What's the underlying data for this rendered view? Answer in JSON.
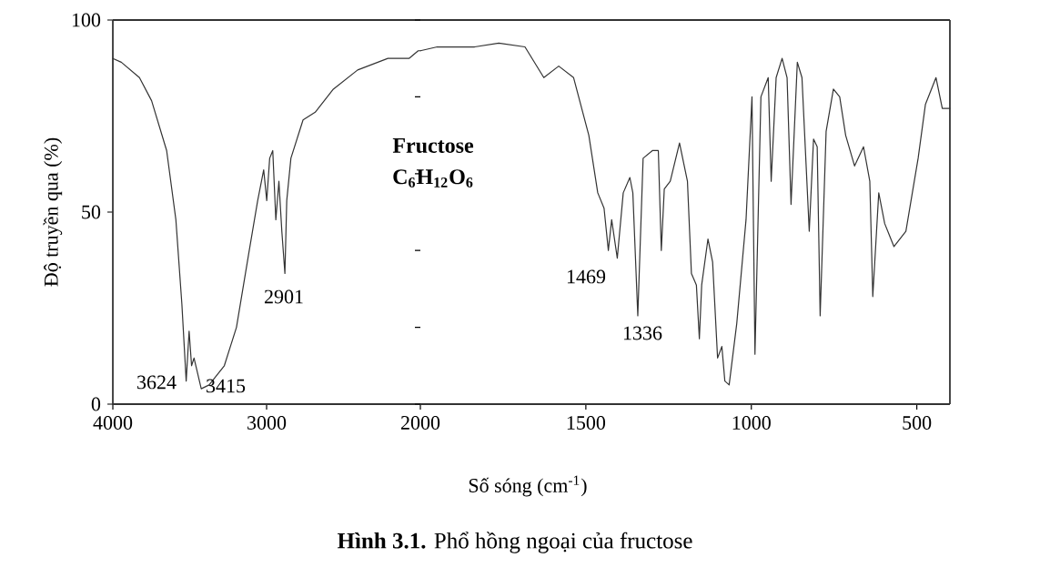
{
  "chart_data": [
    {
      "type": "line",
      "ylabel": "Độ truyền qua (%)",
      "xlim": [
        4000,
        2000
      ],
      "ylim": [
        0,
        100
      ],
      "xticks": [
        4000,
        3000,
        2000
      ],
      "yticks": [
        0,
        50,
        100
      ],
      "grid": false,
      "marker": "none",
      "line_style": "solid",
      "annotations": [
        "3624",
        "3415",
        "2901"
      ],
      "series": [
        {
          "color": "#333333",
          "x": [
            4000,
            3945,
            3827,
            3748,
            3650,
            3590,
            3551,
            3523,
            3504,
            3488,
            3472,
            3425,
            3374,
            3275,
            3196,
            3117,
            3058,
            3019,
            2999,
            2980,
            2960,
            2940,
            2920,
            2901,
            2881,
            2869,
            2842,
            2763,
            2684,
            2566,
            2408,
            2211,
            2074,
            2014,
            2000
          ],
          "values": [
            90,
            89,
            85,
            79,
            66,
            48,
            26,
            6,
            19,
            10,
            12,
            4,
            5,
            10,
            20,
            39,
            53,
            61,
            53,
            64,
            66,
            48,
            58,
            45,
            34,
            53,
            64,
            74,
            76,
            82,
            87,
            90,
            90,
            92,
            92
          ]
        }
      ]
    },
    {
      "type": "line",
      "title": "**Hình 3.1.** Phổ hồng ngoại của fructose",
      "xlabel": "Số sóng (cm$^{-1}$)",
      "xlim": [
        2000,
        400
      ],
      "ylim": [
        0,
        100
      ],
      "xticks": [
        1500,
        1000,
        500
      ],
      "tick_labels": "x",
      "grid": false,
      "marker": "none",
      "line_style": "solid",
      "annotations": [
        "**Fructose**",
        "**C$_{6}$H$_{12}$O$_{6}$**",
        "1469",
        "1336"
      ],
      "series": [
        {
          "color": "#333333",
          "x": [
            2000,
            1949,
            1836,
            1763,
            1684,
            1627,
            1582,
            1537,
            1491,
            1464,
            1445,
            1432,
            1422,
            1405,
            1387,
            1367,
            1358,
            1343,
            1327,
            1299,
            1281,
            1272,
            1263,
            1245,
            1217,
            1193,
            1181,
            1166,
            1157,
            1150,
            1131,
            1117,
            1102,
            1089,
            1080,
            1067,
            1044,
            1016,
            998,
            989,
            971,
            949,
            940,
            925,
            907,
            892,
            880,
            861,
            847,
            825,
            812,
            801,
            792,
            774,
            752,
            733,
            715,
            688,
            661,
            642,
            633,
            615,
            597,
            569,
            533,
            496,
            474,
            442,
            423,
            400
          ],
          "values": [
            92,
            93,
            93,
            94,
            93,
            85,
            88,
            85,
            70,
            55,
            51,
            40,
            48,
            38,
            55,
            59,
            55,
            23,
            64,
            66,
            66,
            40,
            56,
            58,
            68,
            58,
            34,
            31,
            17,
            31,
            43,
            37,
            12,
            15,
            6,
            5,
            21,
            48,
            80,
            13,
            80,
            85,
            58,
            85,
            90,
            85,
            52,
            89,
            85,
            45,
            69,
            67,
            23,
            71,
            82,
            80,
            70,
            62,
            67,
            58,
            28,
            55,
            47,
            41,
            45,
            64,
            78,
            85,
            77,
            77
          ]
        }
      ]
    }
  ]
}
